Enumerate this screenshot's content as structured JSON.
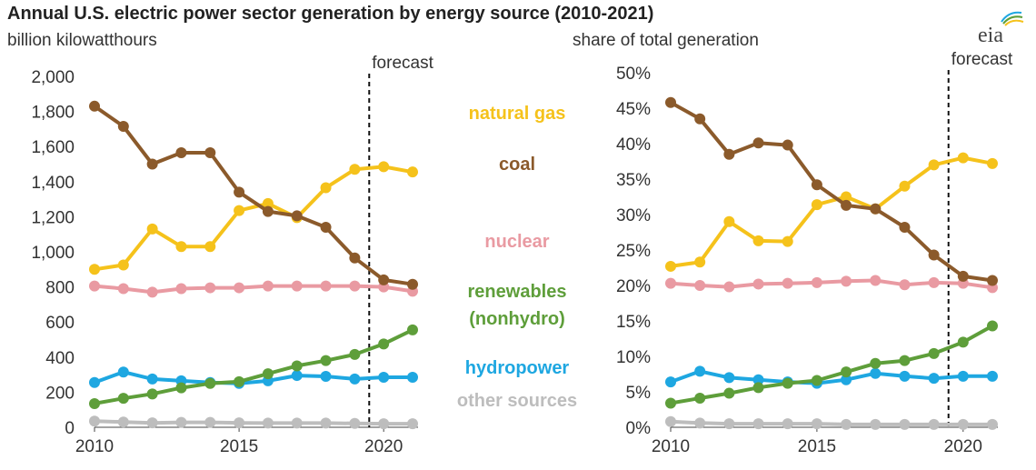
{
  "header": {
    "title": "Annual U.S. electric power sector generation by energy source (2010-2021)",
    "logo_text": "eia"
  },
  "colors": {
    "natural_gas": "#F5C21B",
    "coal": "#8B5A2B",
    "nuclear": "#E99AA2",
    "renewables": "#5E9E3A",
    "hydropower": "#1EA7E1",
    "other": "#BDBDBD",
    "axis": "#444444",
    "text": "#333333"
  },
  "legend": {
    "natural_gas": "natural gas",
    "coal": "coal",
    "nuclear": "nuclear",
    "renewables_line1": "renewables",
    "renewables_line2": "(nonhydro)",
    "hydropower": "hydropower",
    "other": "other sources"
  },
  "chart_data": [
    {
      "type": "line",
      "ylabel": "billion kilowatthours",
      "x": [
        2010,
        2011,
        2012,
        2013,
        2014,
        2015,
        2016,
        2017,
        2018,
        2019,
        2020,
        2021
      ],
      "xticks": [
        "2010",
        "2015",
        "2020"
      ],
      "yticks": [
        "0",
        "200",
        "400",
        "600",
        "800",
        "1,000",
        "1,200",
        "1,400",
        "1,600",
        "1,800",
        "2,000"
      ],
      "ylim": [
        0,
        2000
      ],
      "forecast_x": 2019.5,
      "forecast_label": "forecast",
      "grid": false,
      "series": [
        {
          "name": "natural gas",
          "key": "natural_gas",
          "values": [
            900,
            925,
            1130,
            1030,
            1030,
            1235,
            1275,
            1195,
            1365,
            1470,
            1485,
            1455
          ]
        },
        {
          "name": "coal",
          "key": "coal",
          "values": [
            1830,
            1715,
            1500,
            1565,
            1565,
            1340,
            1230,
            1205,
            1140,
            965,
            840,
            815
          ]
        },
        {
          "name": "nuclear",
          "key": "nuclear",
          "values": [
            805,
            790,
            770,
            790,
            795,
            795,
            805,
            805,
            805,
            805,
            800,
            775
          ]
        },
        {
          "name": "renewables (nonhydro)",
          "key": "renewables",
          "values": [
            135,
            165,
            190,
            225,
            250,
            260,
            305,
            350,
            380,
            415,
            475,
            555
          ]
        },
        {
          "name": "hydropower",
          "key": "hydropower",
          "values": [
            255,
            315,
            275,
            265,
            255,
            250,
            265,
            295,
            290,
            275,
            285,
            285
          ]
        },
        {
          "name": "other sources",
          "key": "other",
          "values": [
            35,
            30,
            25,
            28,
            28,
            25,
            24,
            24,
            24,
            22,
            20,
            20
          ]
        }
      ]
    },
    {
      "type": "line",
      "ylabel": "share of total generation",
      "x": [
        2010,
        2011,
        2012,
        2013,
        2014,
        2015,
        2016,
        2017,
        2018,
        2019,
        2020,
        2021
      ],
      "xticks": [
        "2010",
        "2015",
        "2020"
      ],
      "yticks": [
        "0%",
        "5%",
        "10%",
        "15%",
        "20%",
        "25%",
        "30%",
        "35%",
        "40%",
        "45%",
        "50%"
      ],
      "ylim": [
        0,
        50
      ],
      "forecast_x": 2019.5,
      "forecast_label": "forecast",
      "grid": false,
      "series": [
        {
          "name": "natural gas",
          "key": "natural_gas",
          "values": [
            22.7,
            23.3,
            29.0,
            26.3,
            26.2,
            31.4,
            32.5,
            30.8,
            34.0,
            37.0,
            38.0,
            37.2
          ]
        },
        {
          "name": "coal",
          "key": "coal",
          "values": [
            45.8,
            43.5,
            38.5,
            40.1,
            39.8,
            34.2,
            31.3,
            30.8,
            28.2,
            24.3,
            21.3,
            20.7
          ]
        },
        {
          "name": "nuclear",
          "key": "nuclear",
          "values": [
            20.3,
            20.0,
            19.8,
            20.2,
            20.3,
            20.4,
            20.6,
            20.7,
            20.1,
            20.4,
            20.3,
            19.7
          ]
        },
        {
          "name": "renewables (nonhydro)",
          "key": "renewables",
          "values": [
            3.4,
            4.1,
            4.8,
            5.6,
            6.2,
            6.6,
            7.8,
            9.0,
            9.4,
            10.4,
            12.0,
            14.3
          ]
        },
        {
          "name": "hydropower",
          "key": "hydropower",
          "values": [
            6.4,
            7.9,
            7.0,
            6.7,
            6.4,
            6.2,
            6.7,
            7.6,
            7.2,
            6.9,
            7.2,
            7.2
          ]
        },
        {
          "name": "other sources",
          "key": "other",
          "values": [
            0.8,
            0.6,
            0.5,
            0.5,
            0.5,
            0.5,
            0.4,
            0.4,
            0.4,
            0.4,
            0.4,
            0.4
          ]
        }
      ]
    }
  ]
}
